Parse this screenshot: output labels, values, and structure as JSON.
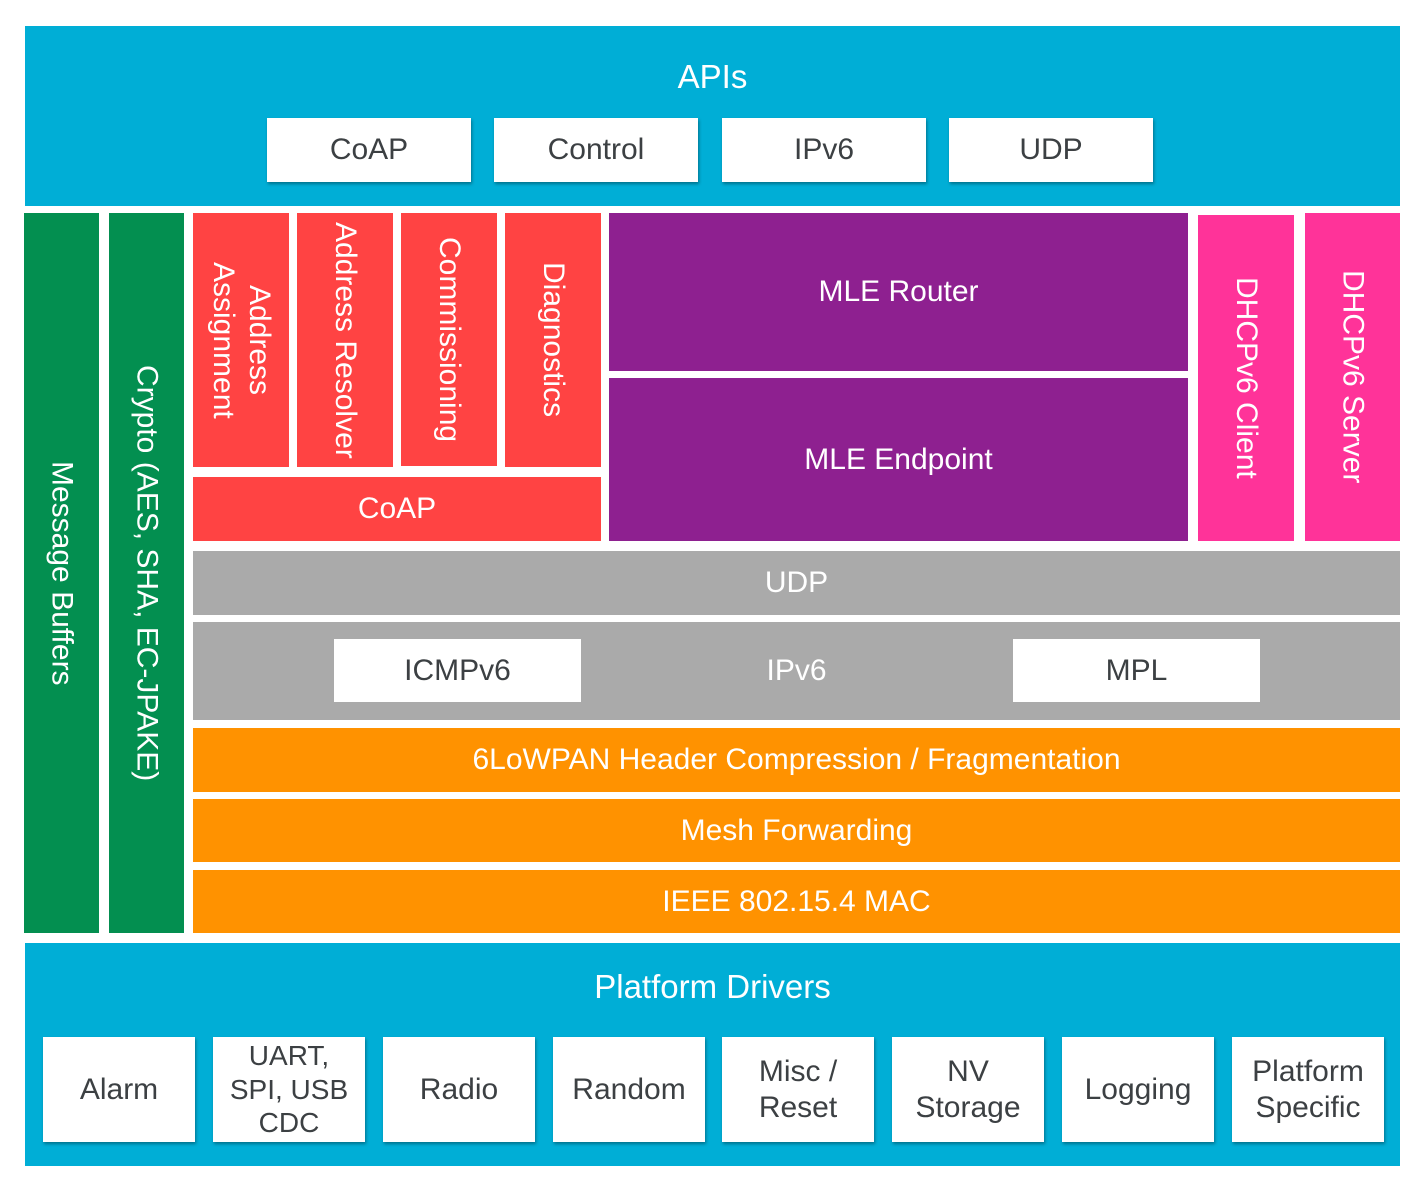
{
  "apis": {
    "title": "APIs",
    "items": [
      "CoAP",
      "Control",
      "IPv6",
      "UDP"
    ]
  },
  "side": {
    "message_buffers": "Message Buffers",
    "crypto": "Crypto (AES, SHA, EC-JPAKE)"
  },
  "services": {
    "address_assignment": "Address Assignment",
    "address_resolver": "Address Resolver",
    "commissioning": "Commissioning",
    "diagnostics": "Diagnostics",
    "coap": "CoAP"
  },
  "mle": {
    "router": "MLE Router",
    "endpoint": "MLE Endpoint"
  },
  "dhcp": {
    "client": "DHCPv6 Client",
    "server": "DHCPv6 Server"
  },
  "network": {
    "udp": "UDP",
    "ipv6": "IPv6",
    "icmpv6": "ICMPv6",
    "mpl": "MPL"
  },
  "link": {
    "lowpan": "6LoWPAN Header Compression / Fragmentation",
    "mesh": "Mesh Forwarding",
    "mac": "IEEE 802.15.4 MAC"
  },
  "platform": {
    "title": "Platform Drivers",
    "items": [
      "Alarm",
      "UART, SPI, USB CDC",
      "Radio",
      "Random",
      "Misc / Reset",
      "NV Storage",
      "Logging",
      "Platform Specific"
    ]
  },
  "colors": {
    "apis": "#00aed6",
    "side": "#038f50",
    "services": "#ff4343",
    "mle": "#8e2090",
    "dhcp": "#ff3399",
    "network": "#aaaaaa",
    "link": "#ff9200"
  }
}
